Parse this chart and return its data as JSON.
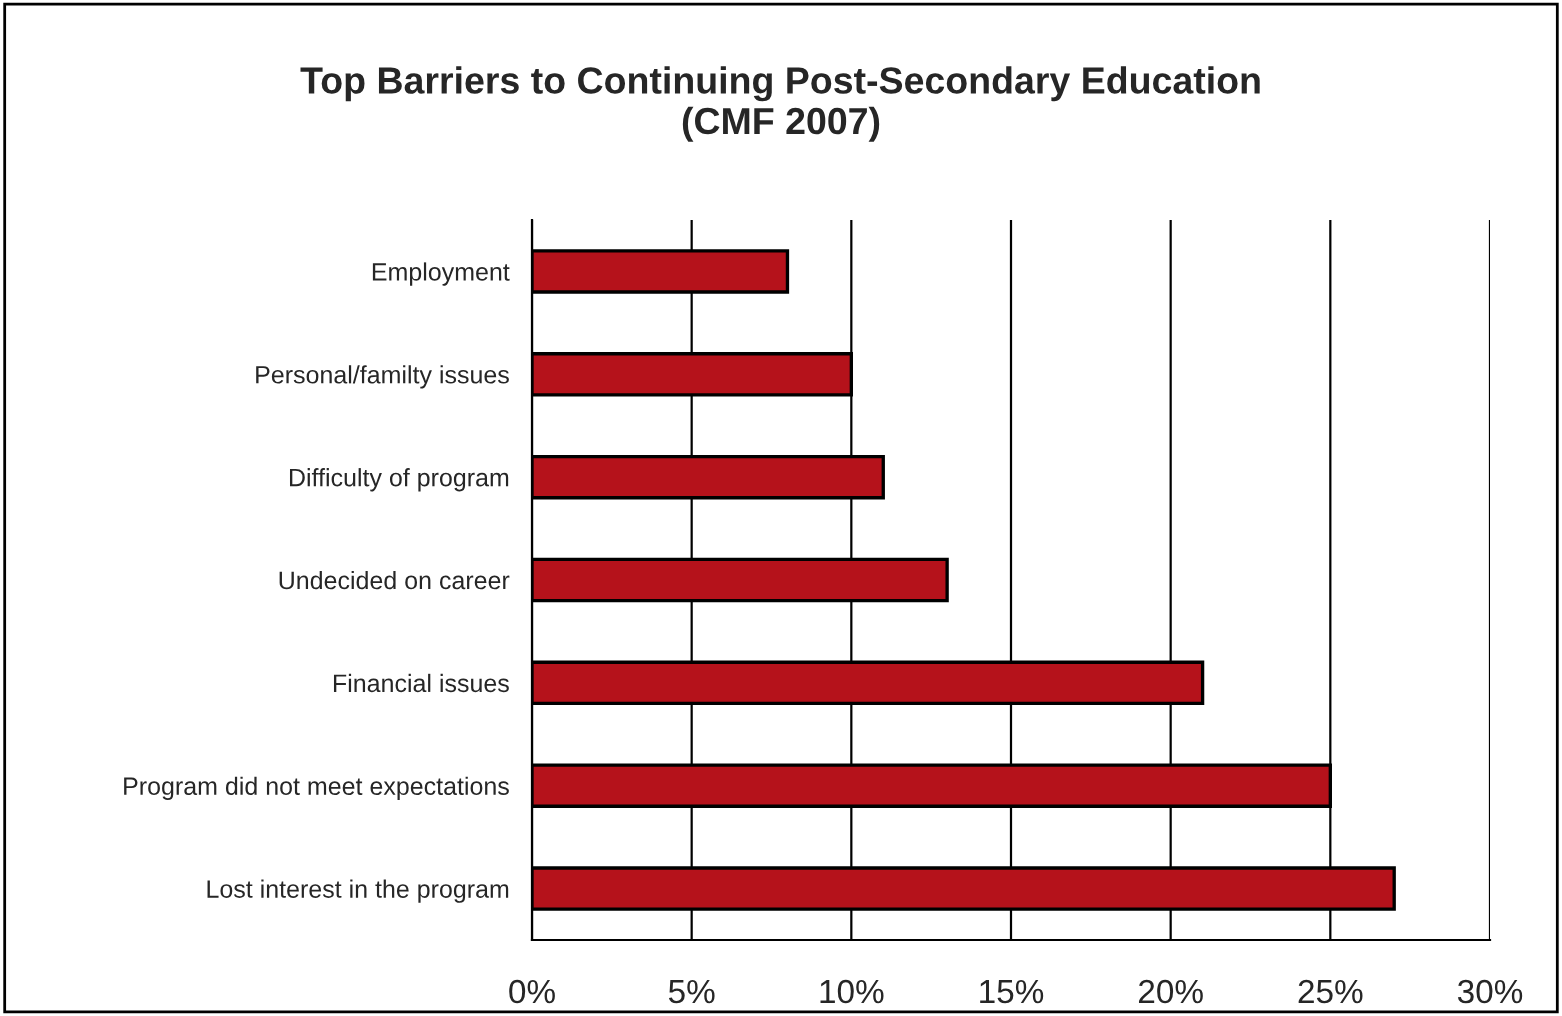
{
  "chart_data": {
    "type": "bar",
    "orientation": "horizontal",
    "title": "Top Barriers to Continuing Post-Secondary Education\n(CMF 2007)",
    "categories": [
      "Employment",
      "Personal/familty issues",
      "Difficulty of program",
      "Undecided on career",
      "Financial issues",
      "Program did not meet expectations",
      "Lost interest in the program"
    ],
    "values": [
      8,
      10,
      11,
      13,
      21,
      25,
      27
    ],
    "color": "#b5121b",
    "xlim": [
      0,
      30
    ],
    "xticks": [
      {
        "value": 0,
        "label": "0%"
      },
      {
        "value": 5,
        "label": "5%"
      },
      {
        "value": 10,
        "label": "10%"
      },
      {
        "value": 15,
        "label": "15%"
      },
      {
        "value": 20,
        "label": "20%"
      },
      {
        "value": 25,
        "label": "25%"
      },
      {
        "value": 30,
        "label": "30%"
      }
    ],
    "grid": "x",
    "legend": false
  }
}
